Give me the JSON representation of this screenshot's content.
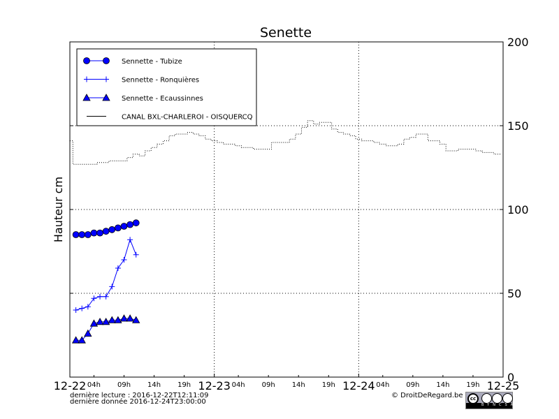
{
  "chart_data": {
    "type": "line",
    "title": "Senette",
    "ylabel": "Hauteur cm",
    "xlabel": "",
    "ylim": [
      0,
      200
    ],
    "yticks": [
      "0",
      "50",
      "100",
      "150",
      "200"
    ],
    "xlim_hours": [
      0,
      72
    ],
    "xticks": [
      {
        "h": 0,
        "label": "12-22",
        "major": true
      },
      {
        "h": 4,
        "label": "04h"
      },
      {
        "h": 9,
        "label": "09h"
      },
      {
        "h": 14,
        "label": "14h"
      },
      {
        "h": 19,
        "label": "19h"
      },
      {
        "h": 24,
        "label": "12-23",
        "major": true
      },
      {
        "h": 28,
        "label": "04h"
      },
      {
        "h": 33,
        "label": "09h"
      },
      {
        "h": 38,
        "label": "14h"
      },
      {
        "h": 43,
        "label": "19h"
      },
      {
        "h": 48,
        "label": "12-24",
        "major": true
      },
      {
        "h": 52,
        "label": "04h"
      },
      {
        "h": 57,
        "label": "09h"
      },
      {
        "h": 62,
        "label": "14h"
      },
      {
        "h": 67,
        "label": "19h"
      },
      {
        "h": 72,
        "label": "12-25",
        "major": true
      }
    ],
    "grid": true,
    "legend_position": "top-left",
    "series": [
      {
        "name": "Sennette - Tubize",
        "marker": "circle",
        "color": "#0000ff",
        "x_hours": [
          1,
          2,
          3,
          4,
          5,
          6,
          7,
          8,
          9,
          10,
          11
        ],
        "values": [
          85,
          85,
          85,
          86,
          86,
          87,
          88,
          89,
          90,
          91,
          92
        ]
      },
      {
        "name": "Sennette - Ronquières",
        "marker": "plus",
        "color": "#0000ff",
        "x_hours": [
          1,
          2,
          3,
          4,
          5,
          6,
          7,
          8,
          9,
          10,
          11
        ],
        "values": [
          40,
          41,
          42,
          47,
          48,
          48,
          54,
          65,
          70,
          82,
          73
        ]
      },
      {
        "name": "Sennette - Ecaussinnes",
        "marker": "triangle",
        "color": "#0000ff",
        "x_hours": [
          1,
          2,
          3,
          4,
          5,
          6,
          7,
          8,
          9,
          10,
          11
        ],
        "values": [
          22,
          22,
          26,
          32,
          33,
          33,
          34,
          34,
          35,
          35,
          34
        ]
      },
      {
        "name": "CANAL BXL-CHARLEROI  - OISQUERCQ",
        "marker": "none",
        "style": "steps-dotted",
        "color": "#000000",
        "x_hours_start": 0,
        "values": [
          141,
          127,
          127,
          127,
          127,
          128,
          128,
          129,
          129,
          129,
          131,
          133,
          132,
          135,
          137,
          139,
          141,
          144,
          145,
          145,
          146,
          145,
          144,
          142,
          141,
          140,
          139,
          139,
          138,
          137,
          137,
          136,
          136,
          136,
          140,
          140,
          140,
          142,
          145,
          149,
          153,
          151,
          152,
          152,
          148,
          146,
          145,
          144,
          142,
          141,
          141,
          140,
          139,
          138,
          138,
          139,
          142,
          143,
          145,
          145,
          141,
          141,
          139,
          135,
          135,
          136,
          136,
          136,
          135,
          134,
          134,
          133,
          133
        ]
      }
    ]
  },
  "footer": {
    "last_read": "dernière lecture : 2016-12-22T12:11:09",
    "last_data": "dernière donnée  2016-12-24T23:00:00",
    "copyright": "© DroitDeRegard.be",
    "license_text": "cc BY NC SA"
  }
}
